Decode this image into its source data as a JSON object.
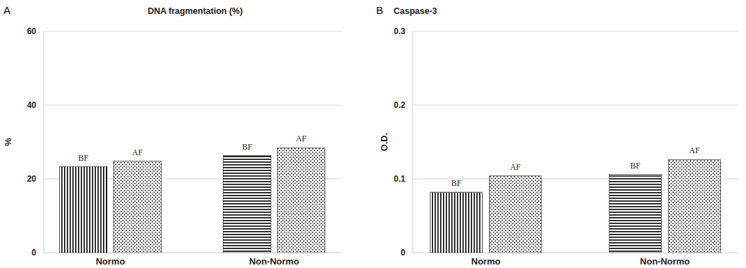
{
  "chart_data": [
    {
      "type": "bar",
      "panel": "A",
      "title": "DNA fragmentation (%)",
      "y_label": "%",
      "categories": [
        "Normo",
        "Non-Normo"
      ],
      "series": [
        {
          "name": "BF",
          "color": "#000000",
          "values": [
            23.3,
            26.3
          ]
        },
        {
          "name": "AF",
          "color": "#000000",
          "values": [
            24.8,
            28.4
          ]
        }
      ],
      "ylim": [
        0,
        60
      ],
      "yticks": [
        0,
        20,
        40,
        60
      ],
      "grid": true
    },
    {
      "type": "bar",
      "panel": "B",
      "title": "Caspase-3",
      "y_label": "O.D.",
      "categories": [
        "Normo",
        "Non-Normo"
      ],
      "series": [
        {
          "name": "BF",
          "color": "#000000",
          "values": [
            0.082,
            0.106
          ]
        },
        {
          "name": "AF",
          "color": "#000000",
          "values": [
            0.104,
            0.126
          ]
        }
      ],
      "ylim": [
        0,
        0.3
      ],
      "yticks": [
        0,
        0.1,
        0.2,
        0.3
      ],
      "grid": true
    }
  ]
}
